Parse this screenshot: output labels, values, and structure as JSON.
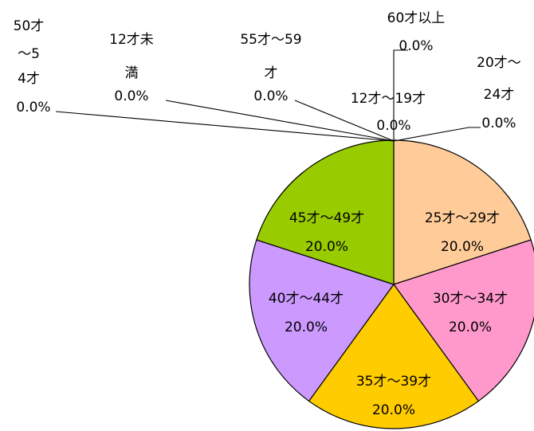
{
  "chart_data": {
    "type": "pie",
    "series": [
      {
        "name": "12才未満",
        "value": 0.0,
        "label": "0.0%",
        "color": "#ffffff"
      },
      {
        "name": "12才～19才",
        "value": 0.0,
        "label": "0.0%",
        "color": "#ffffff"
      },
      {
        "name": "20才～24才",
        "value": 0.0,
        "label": "0.0%",
        "color": "#ffffff"
      },
      {
        "name": "25才～29才",
        "value": 20.0,
        "label": "20.0%",
        "color": "#ffcc99"
      },
      {
        "name": "30才～34才",
        "value": 20.0,
        "label": "20.0%",
        "color": "#ff99cc"
      },
      {
        "name": "35才～39才",
        "value": 20.0,
        "label": "20.0%",
        "color": "#ffcc00"
      },
      {
        "name": "40才～44才",
        "value": 20.0,
        "label": "20.0%",
        "color": "#cc99ff"
      },
      {
        "name": "45才～49才",
        "value": 20.0,
        "label": "20.0%",
        "color": "#99cc00"
      },
      {
        "name": "50才～54才",
        "value": 0.0,
        "label": "0.0%",
        "color": "#ffffff"
      },
      {
        "name": "55才～59才",
        "value": 0.0,
        "label": "0.0%",
        "color": "#ffffff"
      },
      {
        "name": "60才以上",
        "value": 0.0,
        "label": "0.0%",
        "color": "#ffffff"
      }
    ]
  }
}
